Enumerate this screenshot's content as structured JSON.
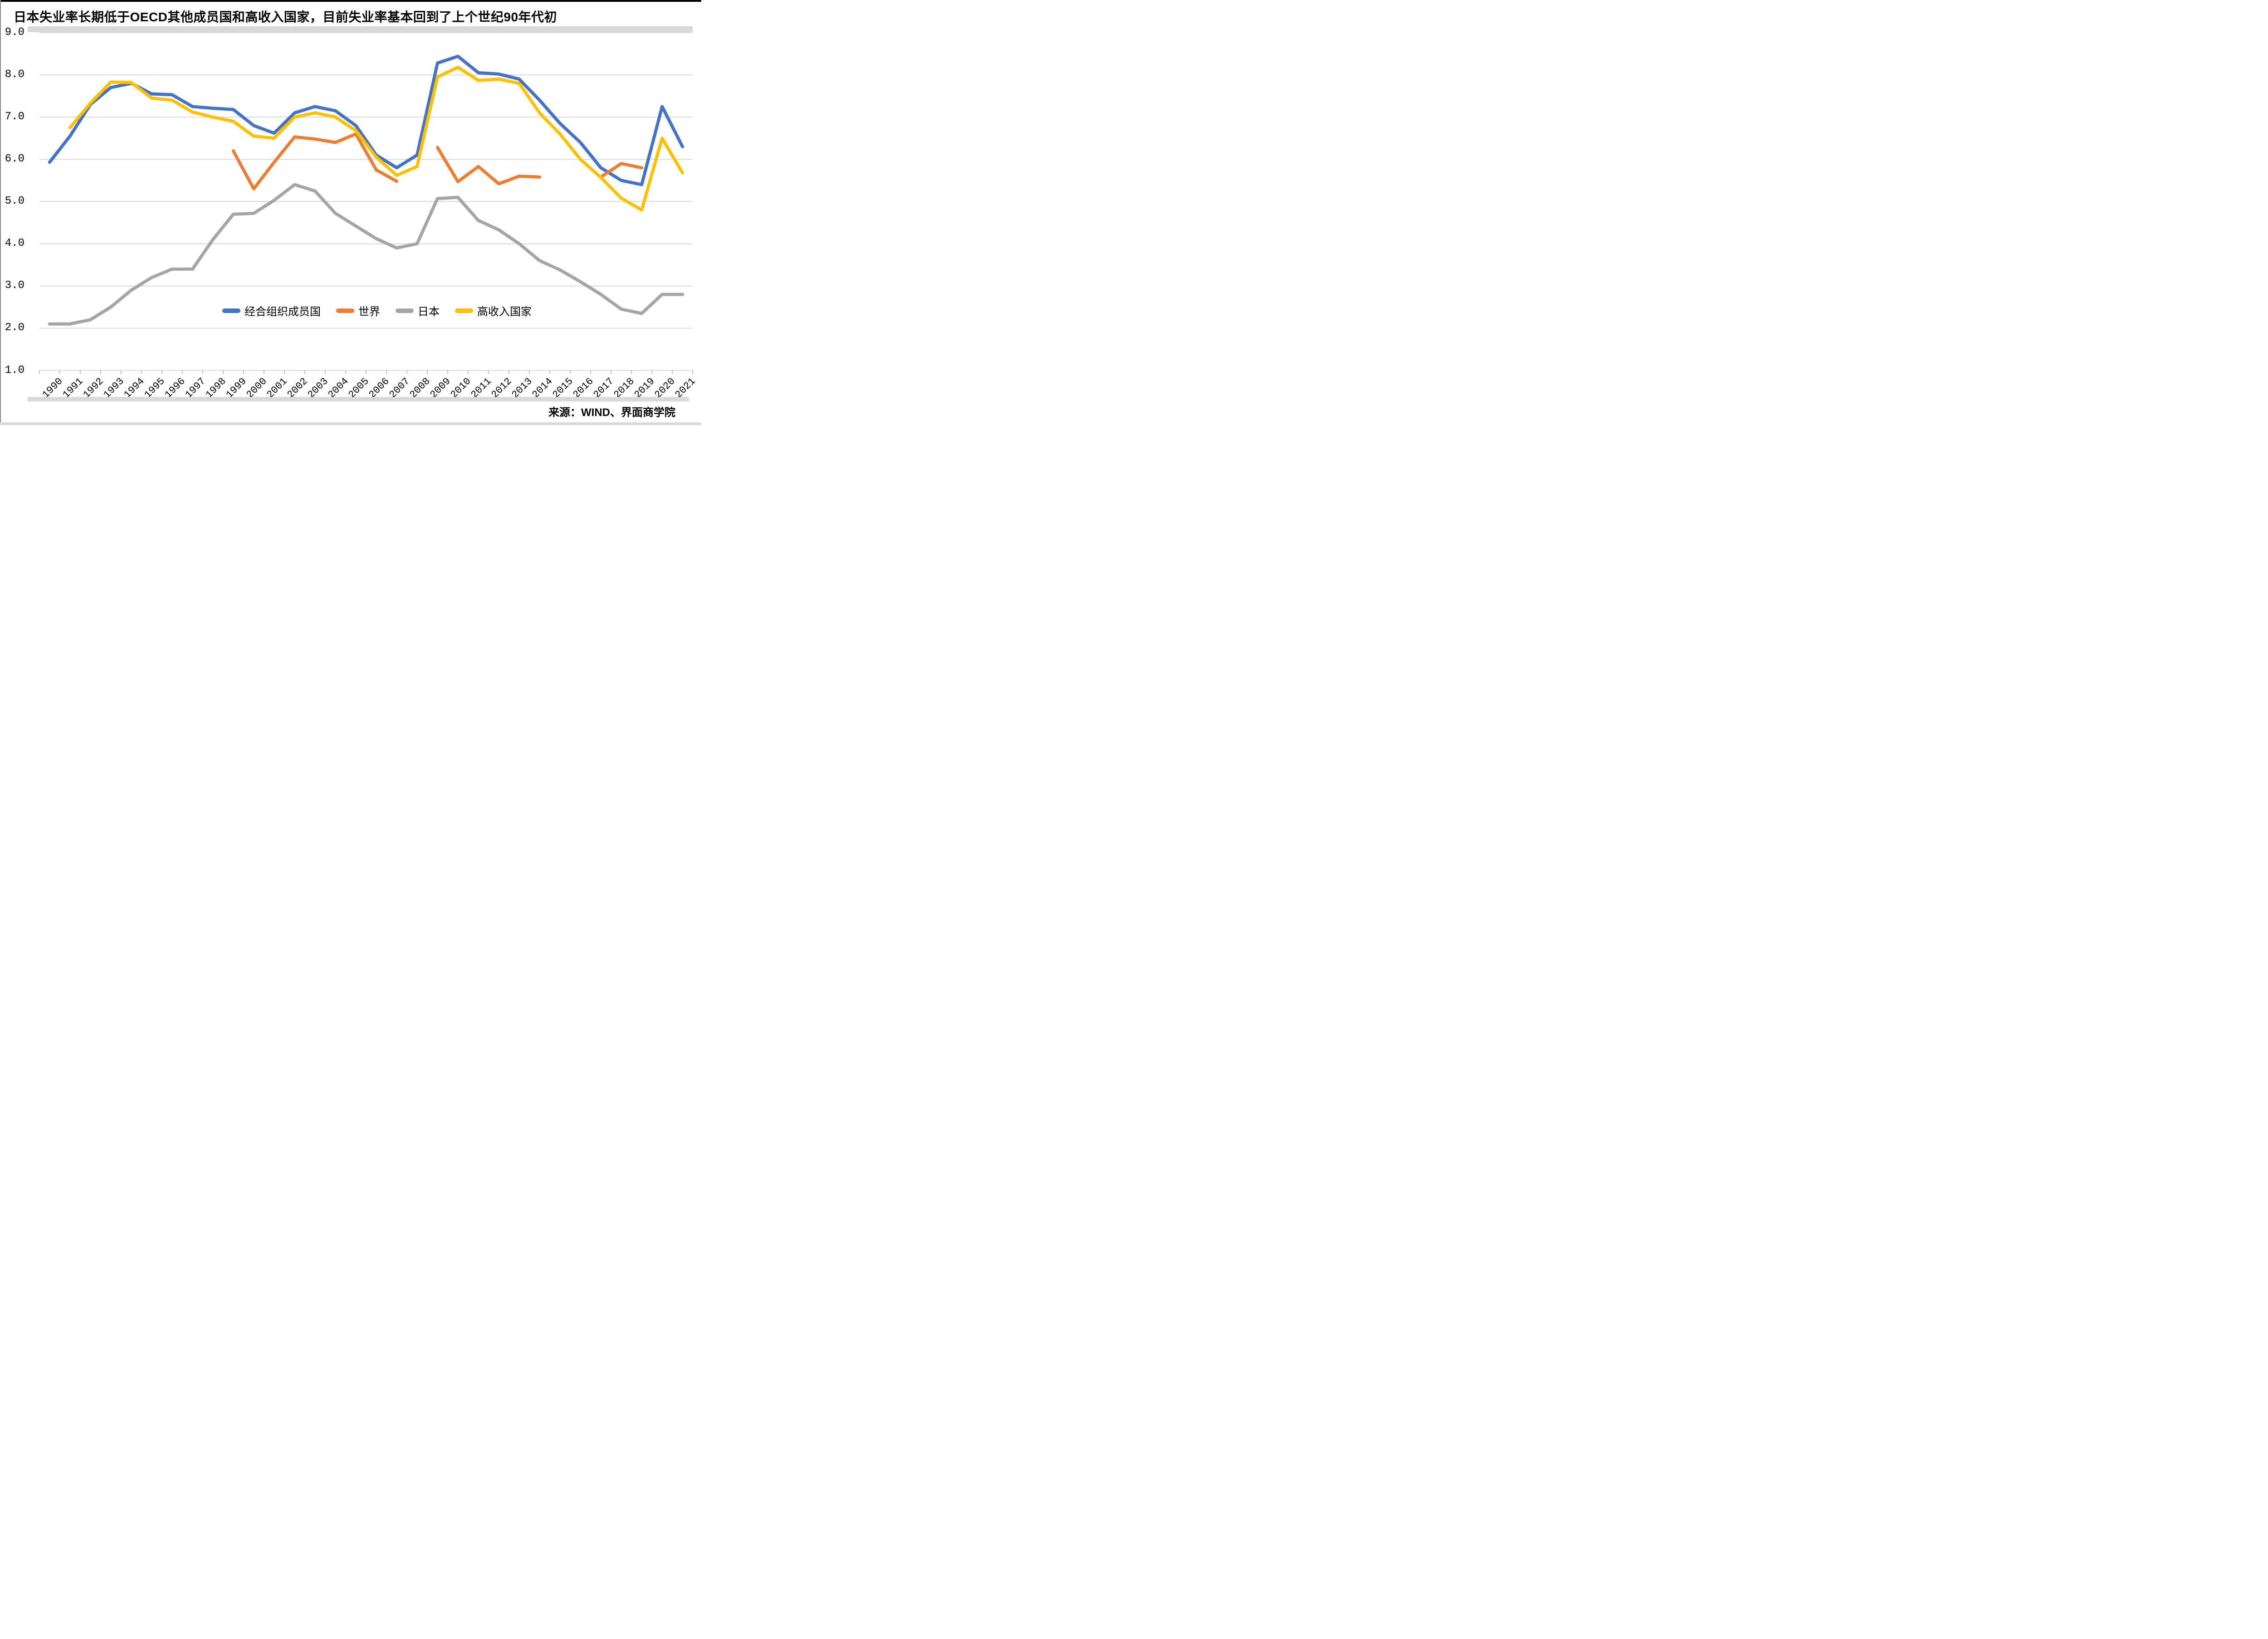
{
  "page": {
    "background": "#FFFFFF",
    "top_border_color": "#000000",
    "left_border_color": "#8C8C8C",
    "separator_bar_color": "#D9D9D9"
  },
  "title": "日本失业率长期低于OECD其他成员国和高收入国家，目前失业率基本回到了上个世纪90年代初",
  "source_note": "来源：WIND、界面商学院",
  "chart_data": {
    "type": "line",
    "title": "日本失业率长期低于OECD其他成员国和高收入国家，目前失业率基本回到了上个世纪90年代初",
    "x_years": [
      1990,
      1991,
      1992,
      1993,
      1994,
      1995,
      1996,
      1997,
      1998,
      1999,
      2000,
      2001,
      2002,
      2003,
      2004,
      2005,
      2006,
      2007,
      2008,
      2009,
      2010,
      2011,
      2012,
      2013,
      2014,
      2015,
      2016,
      2017,
      2018,
      2019,
      2020,
      2021
    ],
    "ylim": [
      1.0,
      9.0
    ],
    "ytick_labels": [
      "9.0",
      "8.0",
      "7.0",
      "6.0",
      "5.0",
      "4.0",
      "3.0",
      "2.0",
      "1.0"
    ],
    "xlabel": "",
    "ylabel": "",
    "grid": true,
    "gridline_color": "#D9D9D9",
    "tick_color": "#BFBFBF",
    "legend_position": "inside-bottom-center",
    "series": [
      {
        "name": "经合组织成员国",
        "color": "#4472C4",
        "values": [
          5.93,
          6.55,
          7.3,
          7.7,
          7.8,
          7.55,
          7.53,
          7.25,
          7.21,
          7.18,
          6.8,
          6.62,
          7.1,
          7.25,
          7.15,
          6.8,
          6.1,
          5.8,
          6.1,
          8.28,
          8.44,
          8.05,
          8.02,
          7.9,
          7.4,
          6.85,
          6.4,
          5.8,
          5.5,
          5.4,
          7.25,
          6.3
        ]
      },
      {
        "name": "世界",
        "color": "#ED7D31",
        "values": [
          null,
          null,
          null,
          null,
          null,
          null,
          null,
          null,
          null,
          6.2,
          5.3,
          5.93,
          6.53,
          6.48,
          6.4,
          6.6,
          5.75,
          5.48,
          null,
          6.28,
          5.47,
          5.83,
          5.42,
          5.6,
          5.58,
          null,
          null,
          5.58,
          5.9,
          5.8,
          null,
          null
        ]
      },
      {
        "name": "日本",
        "color": "#A5A5A5",
        "values": [
          2.1,
          2.1,
          2.2,
          2.5,
          2.9,
          3.2,
          3.4,
          3.4,
          4.1,
          4.7,
          4.72,
          5.03,
          5.4,
          5.25,
          4.72,
          4.42,
          4.12,
          3.9,
          4.0,
          5.07,
          5.1,
          4.55,
          4.33,
          4.0,
          3.6,
          3.38,
          3.1,
          2.8,
          2.45,
          2.35,
          2.8,
          2.8
        ]
      },
      {
        "name": "高收入国家",
        "color": "#FFC000",
        "values": [
          null,
          6.75,
          7.33,
          7.83,
          7.82,
          7.45,
          7.4,
          7.12,
          7.0,
          6.9,
          6.55,
          6.5,
          7.0,
          7.1,
          7.0,
          6.68,
          6.05,
          5.62,
          5.83,
          7.95,
          8.18,
          7.87,
          7.9,
          7.8,
          7.1,
          6.6,
          6.0,
          5.57,
          5.08,
          4.8,
          6.5,
          5.68
        ]
      }
    ]
  }
}
